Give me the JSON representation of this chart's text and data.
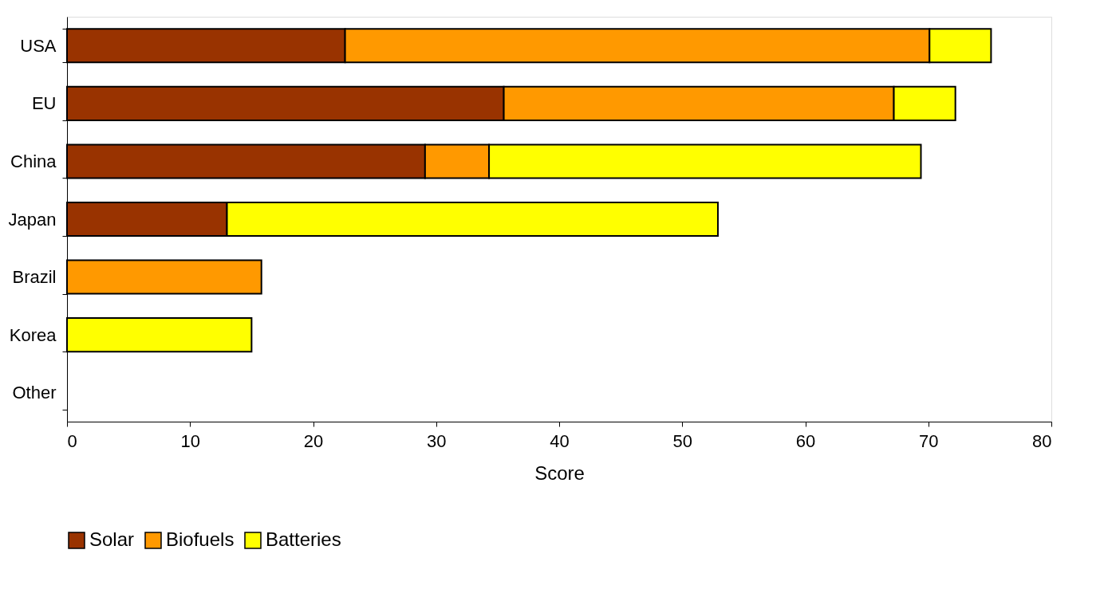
{
  "chart_data": {
    "type": "bar",
    "orientation": "horizontal",
    "stacked": true,
    "xlabel": "Score",
    "categories": [
      "USA",
      "EU",
      "China",
      "Japan",
      "Brazil",
      "Korea",
      "Other"
    ],
    "series": [
      {
        "name": "Solar",
        "color": "#993300",
        "values": [
          22.6,
          35.5,
          29.1,
          13.0,
          null,
          null,
          null
        ]
      },
      {
        "name": "Biofuels",
        "color": "#ff9900",
        "values": [
          47.5,
          31.7,
          5.2,
          null,
          15.8,
          null,
          null
        ]
      },
      {
        "name": "Batteries",
        "color": "#ffff00",
        "values": [
          5.0,
          5.0,
          35.1,
          39.9,
          null,
          15.0,
          null
        ]
      }
    ],
    "xlim": [
      0,
      80
    ],
    "xticks": [
      0,
      10,
      20,
      30,
      40,
      50,
      60,
      70,
      80
    ],
    "grid": false,
    "legend": "bottom"
  }
}
